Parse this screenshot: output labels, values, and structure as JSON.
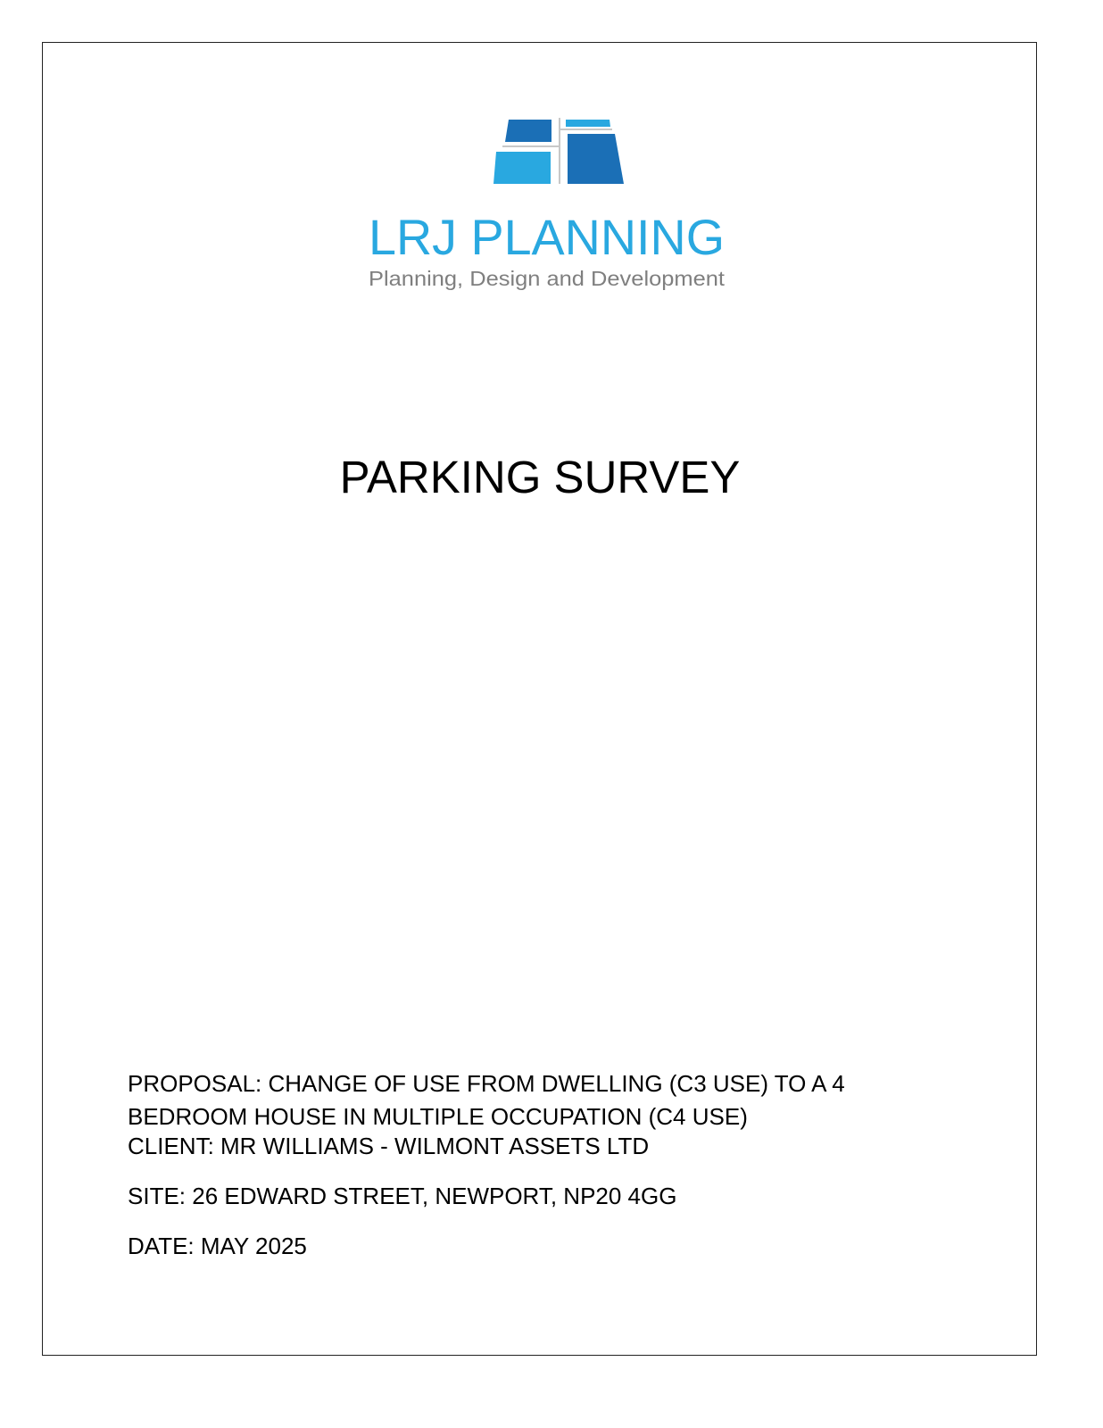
{
  "logo": {
    "name": "LRJ PLANNING",
    "tagline": "Planning, Design and Development",
    "colors": {
      "light_blue": "#29a8e0",
      "dark_blue": "#1b6fb6",
      "gray": "#7f7f7f",
      "line": "#c8c8c8"
    }
  },
  "title": "PARKING SURVEY",
  "details": {
    "proposal_line1": "PROPOSAL: CHANGE OF USE FROM DWELLING (C3 USE) TO A 4",
    "proposal_line2": "BEDROOM HOUSE IN MULTIPLE OCCUPATION (C4 USE)",
    "client": "CLIENT: MR WILLIAMS - WILMONT ASSETS LTD",
    "site": "SITE: 26 EDWARD STREET, NEWPORT, NP20 4GG",
    "date": "DATE: MAY 2025"
  }
}
